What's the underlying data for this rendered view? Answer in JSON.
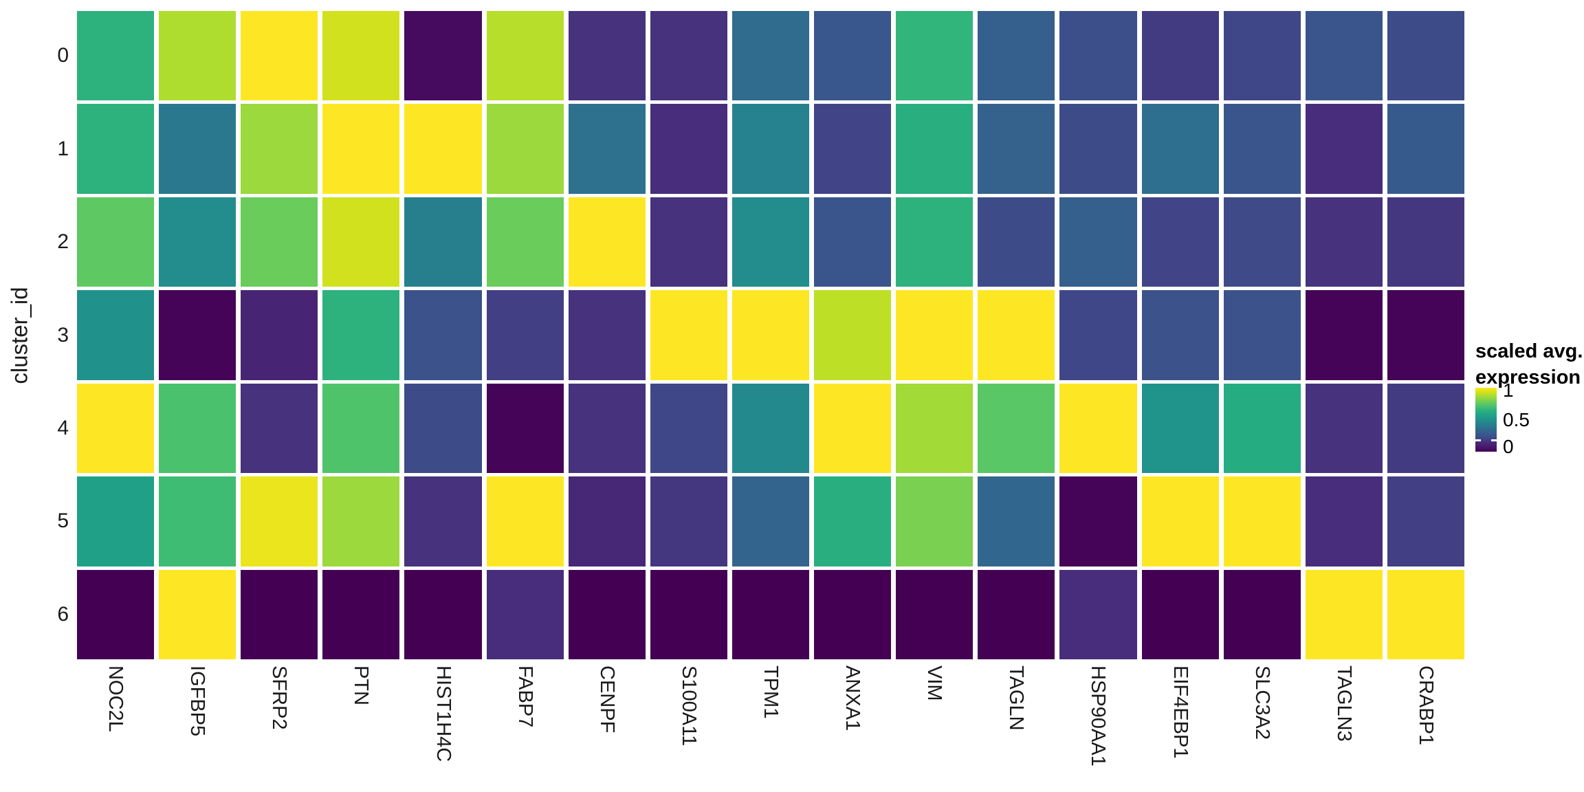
{
  "chart_data": {
    "type": "heatmap",
    "x_categories": [
      "NOC2L",
      "IGFBP5",
      "SFRP2",
      "PTN",
      "HIST1H4C",
      "FABP7",
      "CENPF",
      "S100A11",
      "TPM1",
      "ANXA1",
      "VIM",
      "TAGLN",
      "HSP90AA1",
      "EIF4EBP1",
      "SLC3A2",
      "TAGLN3",
      "CRABP1"
    ],
    "y_categories": [
      "0",
      "1",
      "2",
      "3",
      "4",
      "5",
      "6"
    ],
    "y_axis_label": "cluster_id",
    "x_axis_label": "",
    "values": [
      [
        0.65,
        0.88,
        1.0,
        0.93,
        0.03,
        0.89,
        0.16,
        0.16,
        0.35,
        0.27,
        0.66,
        0.3,
        0.24,
        0.18,
        0.21,
        0.26,
        0.23
      ],
      [
        0.65,
        0.4,
        0.85,
        1.0,
        1.0,
        0.85,
        0.37,
        0.15,
        0.44,
        0.2,
        0.63,
        0.31,
        0.23,
        0.36,
        0.26,
        0.15,
        0.28
      ],
      [
        0.75,
        0.48,
        0.77,
        0.93,
        0.43,
        0.77,
        1.0,
        0.16,
        0.48,
        0.26,
        0.65,
        0.23,
        0.3,
        0.2,
        0.22,
        0.16,
        0.17
      ],
      [
        0.5,
        0.01,
        0.12,
        0.65,
        0.25,
        0.19,
        0.16,
        1.0,
        1.0,
        0.9,
        1.0,
        1.0,
        0.21,
        0.25,
        0.25,
        0.01,
        0.01
      ],
      [
        1.0,
        0.71,
        0.16,
        0.72,
        0.23,
        0.01,
        0.16,
        0.21,
        0.47,
        1.0,
        0.86,
        0.74,
        1.0,
        0.51,
        0.62,
        0.16,
        0.18
      ],
      [
        0.57,
        0.69,
        0.97,
        0.85,
        0.16,
        1.0,
        0.13,
        0.17,
        0.32,
        0.63,
        0.8,
        0.33,
        0.01,
        1.0,
        1.0,
        0.15,
        0.19
      ],
      [
        0.0,
        1.0,
        0.0,
        0.0,
        0.0,
        0.15,
        0.0,
        0.0,
        0.0,
        0.0,
        0.0,
        0.0,
        0.15,
        0.0,
        0.0,
        1.0,
        1.0
      ]
    ],
    "value_range": [
      0,
      1
    ],
    "grid_line_color": "#ffffff",
    "legend": {
      "title_lines": [
        "scaled avg.",
        "expression"
      ],
      "ticks": [
        {
          "label": "1",
          "value": 1.0,
          "pos_from_bottom": 0.955
        },
        {
          "label": "0.5",
          "value": 0.5,
          "pos_from_bottom": 0.5
        },
        {
          "label": "0",
          "value": 0.0,
          "pos_from_bottom": 0.075
        }
      ]
    },
    "colormap": {
      "name": "viridis",
      "stops": [
        [
          0.0,
          "#440154"
        ],
        [
          0.05,
          "#471164"
        ],
        [
          0.1,
          "#482070"
        ],
        [
          0.15,
          "#472d7b"
        ],
        [
          0.2,
          "#414487"
        ],
        [
          0.25,
          "#3b528b"
        ],
        [
          0.3,
          "#355f8d"
        ],
        [
          0.35,
          "#2f6c8e"
        ],
        [
          0.4,
          "#2a788e"
        ],
        [
          0.45,
          "#25848e"
        ],
        [
          0.5,
          "#21918c"
        ],
        [
          0.55,
          "#1e9d89"
        ],
        [
          0.6,
          "#22a884"
        ],
        [
          0.65,
          "#2db27d"
        ],
        [
          0.7,
          "#44bf70"
        ],
        [
          0.75,
          "#5ec962"
        ],
        [
          0.8,
          "#7ad151"
        ],
        [
          0.85,
          "#9bd93c"
        ],
        [
          0.9,
          "#bddf26"
        ],
        [
          0.95,
          "#dfe318"
        ],
        [
          1.0,
          "#fde725"
        ]
      ]
    }
  }
}
